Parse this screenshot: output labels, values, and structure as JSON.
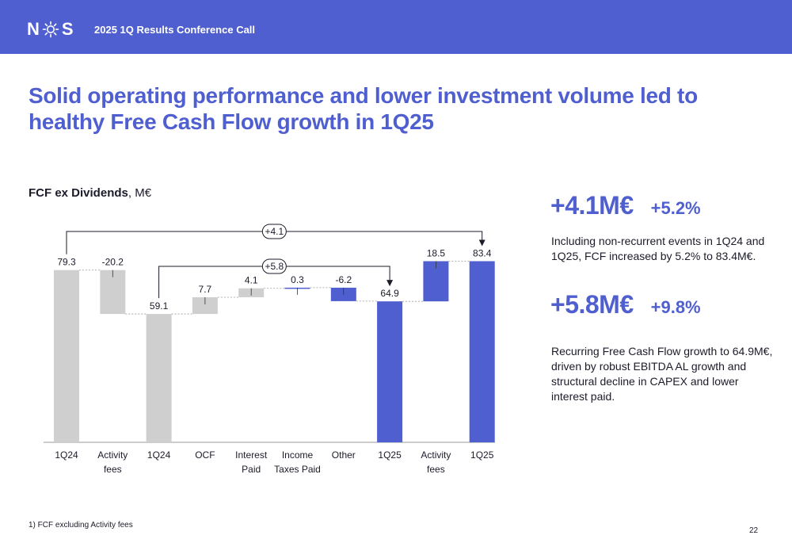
{
  "header": {
    "logo_left": "N",
    "logo_right": "S",
    "title": "2025 1Q Results Conference Call"
  },
  "headline": "Solid operating performance and lower investment volume led to healthy Free Cash Flow growth in 1Q25",
  "chart_title": {
    "bold": "FCF ex Dividends",
    "rest": ", M€"
  },
  "chart_data": {
    "type": "waterfall",
    "ylim": [
      0,
      100
    ],
    "categories": [
      "1Q24",
      "Activity fees",
      "1Q24",
      "OCF",
      "Interest Paid",
      "Income Taxes Paid",
      "Other",
      "1Q25",
      "Activity fees",
      "1Q25"
    ],
    "category_lines": [
      [
        "1Q24"
      ],
      [
        "Activity",
        "fees"
      ],
      [
        "1Q24"
      ],
      [
        "OCF"
      ],
      [
        "Interest",
        "Paid"
      ],
      [
        "Income",
        "Taxes Paid"
      ],
      [
        "Other"
      ],
      [
        "1Q25"
      ],
      [
        "Activity",
        "fees"
      ],
      [
        "1Q25"
      ]
    ],
    "values": [
      79.3,
      -20.2,
      59.1,
      7.7,
      4.1,
      0.3,
      -6.2,
      64.9,
      18.5,
      83.4
    ],
    "value_labels": [
      "79.3",
      "-20.2",
      "59.1",
      "7.7",
      "4.1",
      "0.3",
      "-6.2",
      "64.9",
      "18.5",
      "83.4"
    ],
    "kinds": [
      "total",
      "delta",
      "total",
      "delta",
      "delta",
      "delta",
      "delta",
      "total",
      "delta",
      "total"
    ],
    "colors": [
      "grey",
      "grey",
      "grey",
      "grey",
      "grey",
      "blue",
      "blue",
      "blue",
      "blue",
      "blue"
    ],
    "brackets": [
      {
        "from": 0,
        "to": 9,
        "label": "+4.1"
      },
      {
        "from": 2,
        "to": 7,
        "label": "+5.8"
      }
    ],
    "palette": {
      "grey": "#cfcfcf",
      "blue": "#4f5fcf"
    }
  },
  "kpis": [
    {
      "big": "+4.1M€",
      "small": "+5.2%",
      "text": "Including non-recurrent events in 1Q24 and 1Q25, FCF increased by 5.2% to 83.4M€."
    },
    {
      "big": "+5.8M€",
      "small": "+9.8%",
      "text": "Recurring Free Cash Flow growth to 64.9M€, driven by robust EBITDA AL growth and structural decline in CAPEX and lower interest paid."
    }
  ],
  "footnote": "1) FCF excluding Activity fees",
  "page_number": "22"
}
